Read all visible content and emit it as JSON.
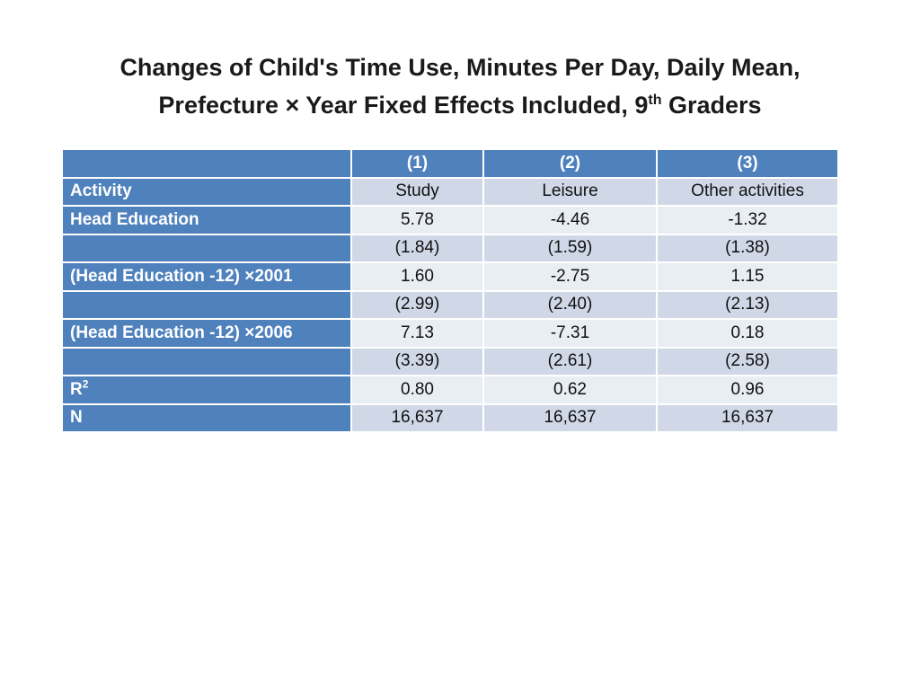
{
  "title": {
    "line1": "Changes of Child's Time Use, Minutes Per Day, Daily Mean,",
    "line2_pre": "Prefecture × Year Fixed Effects Included, 9",
    "line2_sup": "th",
    "line2_post": " Graders"
  },
  "table": {
    "header": [
      "(1)",
      "(2)",
      "(3)"
    ],
    "rows": [
      {
        "label": "Activity",
        "values": [
          "Study",
          "Leisure",
          "Other activities"
        ]
      },
      {
        "label": "Head Education",
        "values": [
          "5.78",
          "-4.46",
          "-1.32"
        ]
      },
      {
        "label": "",
        "values": [
          "(1.84)",
          "(1.59)",
          "(1.38)"
        ]
      },
      {
        "label": "(Head Education -12) ×2001",
        "values": [
          "1.60",
          "-2.75",
          "1.15"
        ]
      },
      {
        "label": "",
        "values": [
          "(2.99)",
          "(2.40)",
          "(2.13)"
        ]
      },
      {
        "label": "(Head Education -12) ×2006",
        "values": [
          "7.13",
          "-7.31",
          "0.18"
        ]
      },
      {
        "label": "",
        "values": [
          "(3.39)",
          "(2.61)",
          "(2.58)"
        ]
      },
      {
        "label": "R",
        "label_sup": "2",
        "values": [
          "0.80",
          "0.62",
          "0.96"
        ]
      },
      {
        "label": "N",
        "values": [
          "16,637",
          "16,637",
          "16,637"
        ]
      }
    ]
  },
  "colors": {
    "header_blue": "#4f81bd",
    "row_dark": "#d0d8e8",
    "row_light": "#e9edf4"
  }
}
